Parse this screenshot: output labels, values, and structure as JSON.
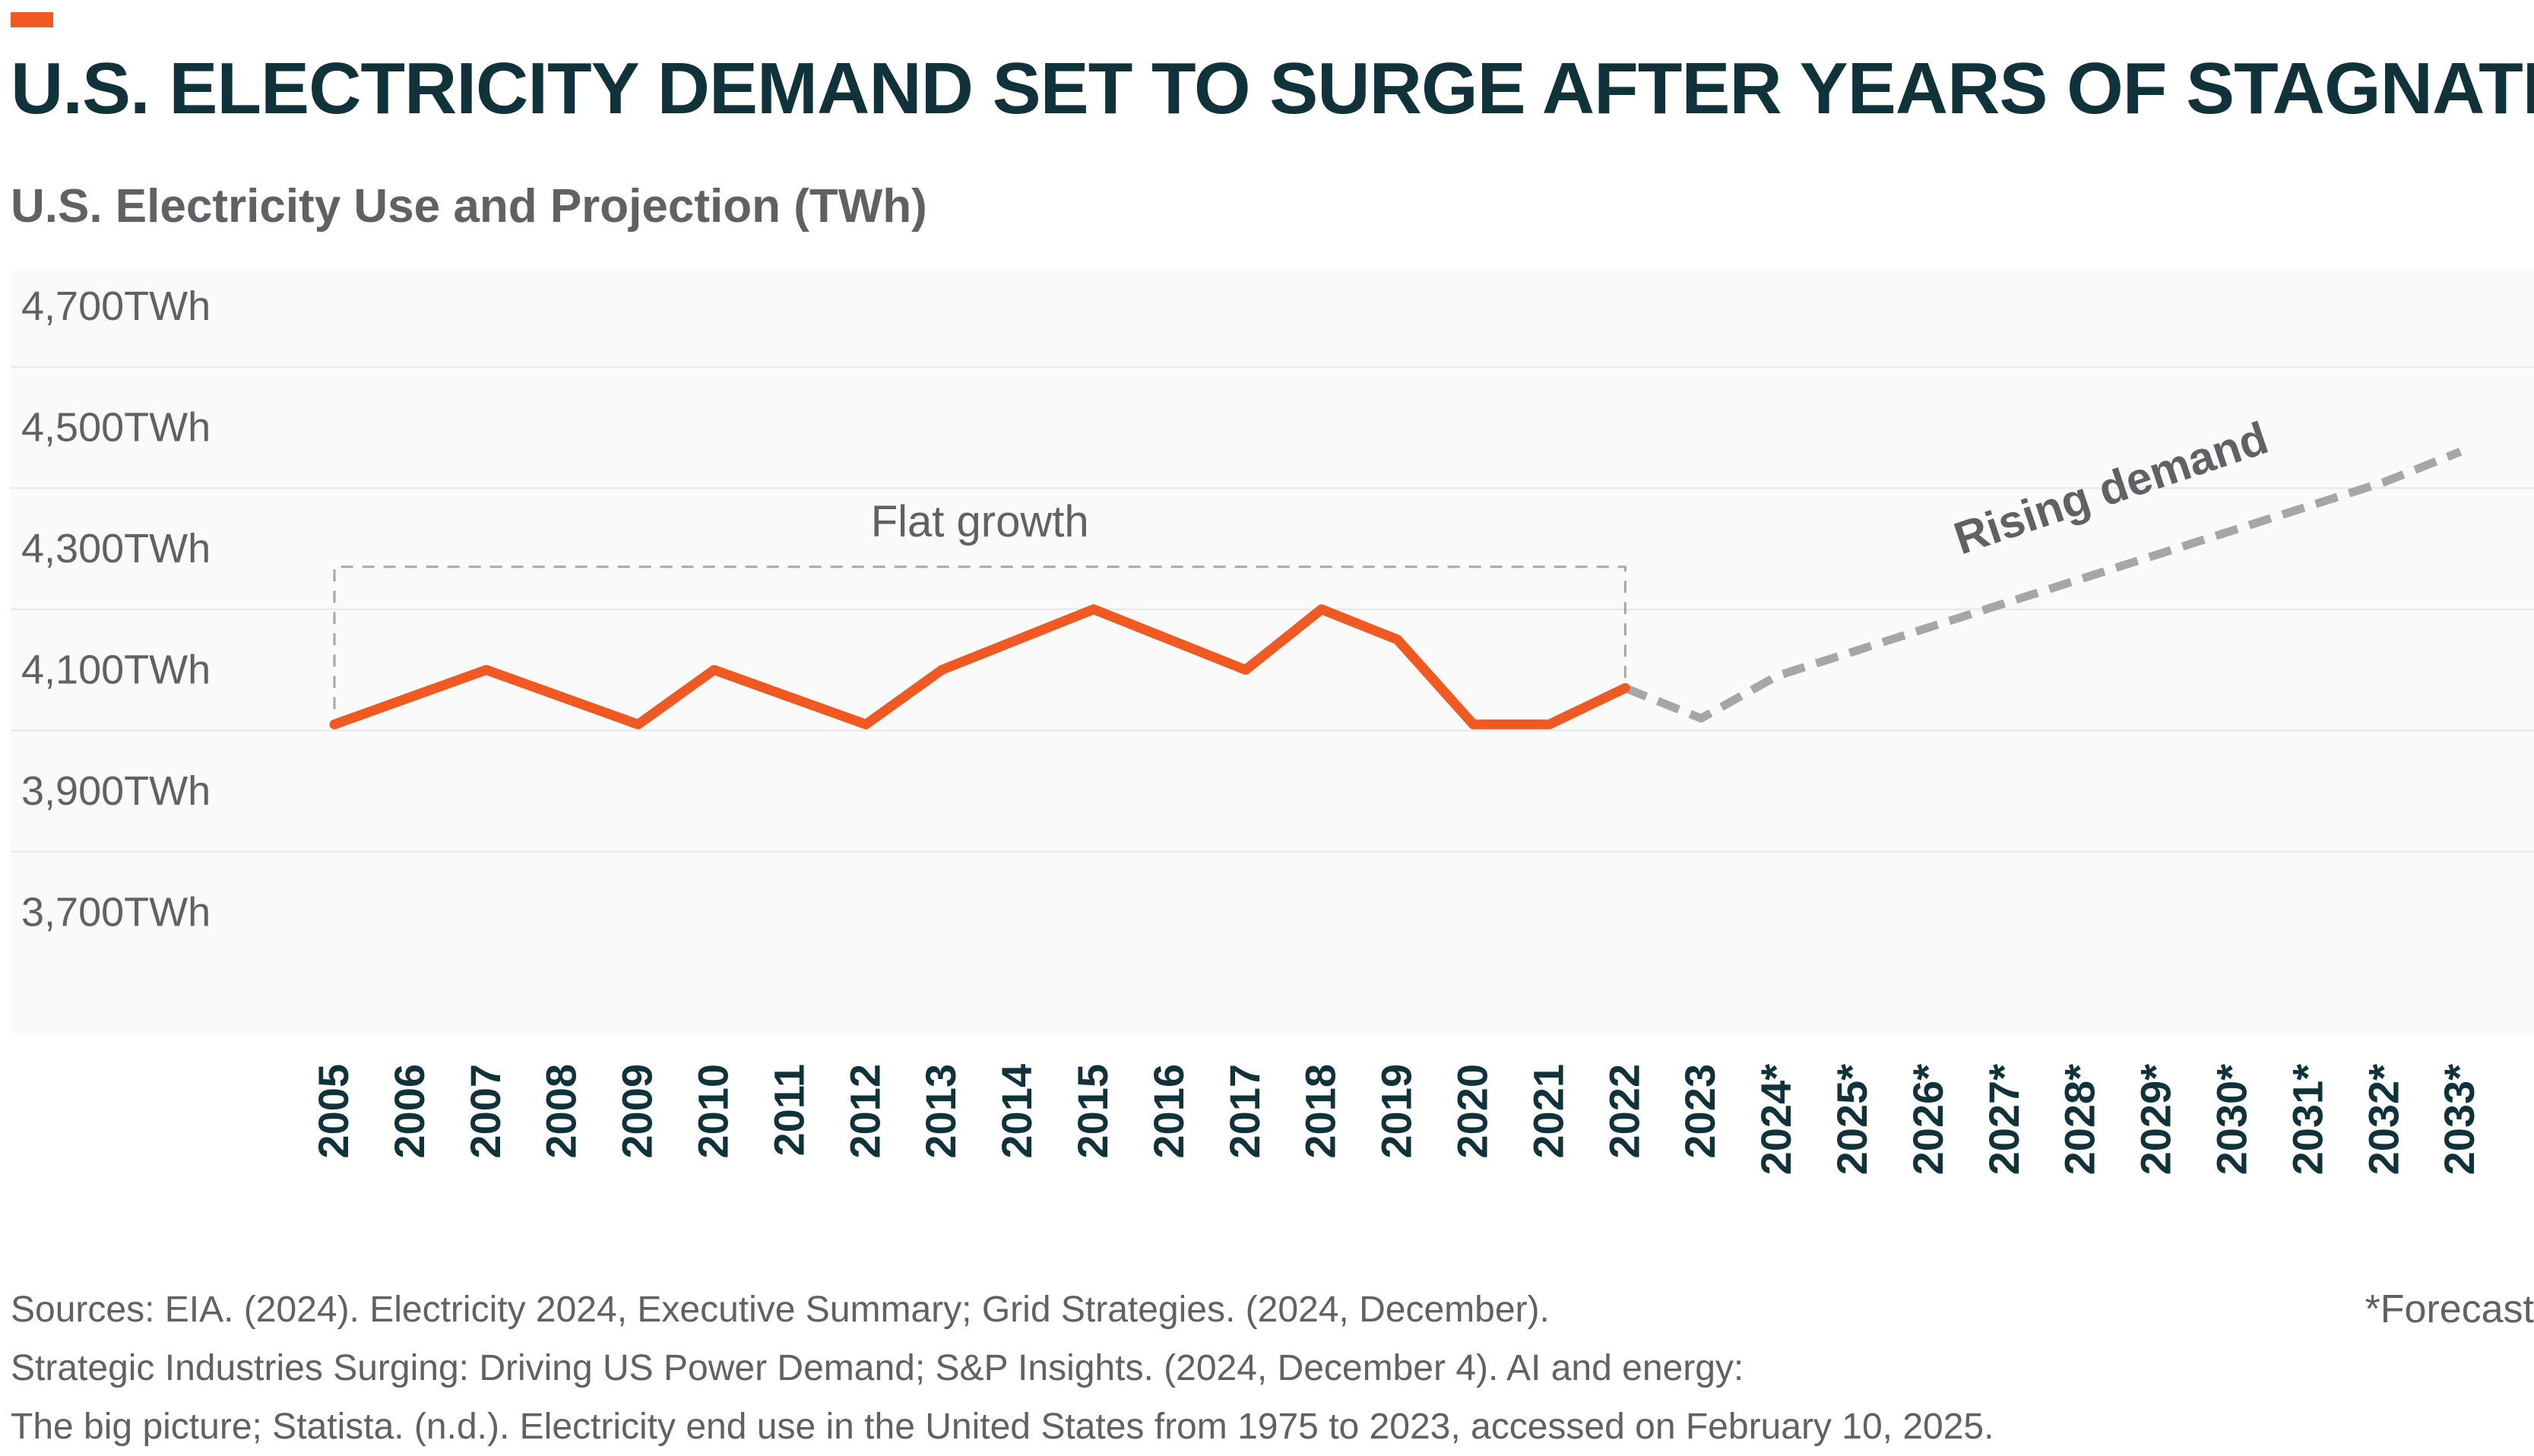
{
  "header": {
    "title": "U.S. ELECTRICITY DEMAND SET TO SURGE AFTER YEARS OF STAGNATION",
    "subtitle": "U.S. Electricity Use and Projection (TWh)"
  },
  "colors": {
    "accent": "#f05a22",
    "title": "#10323a",
    "muted_text": "#5f6165",
    "actual_line": "#f05a22",
    "forecast_line": "#a6a6a6",
    "plot_background": "#fafafa",
    "grid": "#e6e6e6",
    "annotation_box": "#a6a6a6"
  },
  "chart_data": {
    "type": "line",
    "categories": [
      "2005",
      "2006",
      "2007",
      "2008",
      "2009",
      "2010",
      "2011",
      "2012",
      "2013",
      "2014",
      "2015",
      "2016",
      "2017",
      "2018",
      "2019",
      "2020",
      "2021",
      "2022",
      "2023",
      "2024*",
      "2025*",
      "2026*",
      "2027*",
      "2028*",
      "2029*",
      "2030*",
      "2031*",
      "2032*",
      "2033*"
    ],
    "series": [
      {
        "name": "",
        "style": "solid",
        "values": [
          4010,
          4055,
          4100,
          4055,
          4010,
          4100,
          4055,
          4010,
          4100,
          4150,
          4200,
          4150,
          4100,
          4200,
          4150,
          4010,
          4010,
          4070,
          null,
          null,
          null,
          null,
          null,
          null,
          null,
          null,
          null,
          null,
          null
        ]
      },
      {
        "name": "",
        "style": "dashed",
        "values": [
          null,
          null,
          null,
          null,
          null,
          null,
          null,
          null,
          null,
          null,
          null,
          null,
          null,
          null,
          null,
          null,
          null,
          4070,
          4020,
          4090,
          4130,
          4170,
          4210,
          4250,
          4290,
          4330,
          4370,
          4410,
          4460
        ]
      }
    ],
    "y_ticks": [
      3700,
      3900,
      4100,
      4300,
      4500,
      4700
    ],
    "y_tick_labels": [
      "3,700TWh",
      "3,900TWh",
      "4,100TWh",
      "4,300TWh",
      "4,500TWh",
      "4,700TWh"
    ],
    "ylim": [
      3500,
      4700
    ],
    "grid": true,
    "annotations": [
      {
        "text": "Flat growth",
        "type": "dashed-box",
        "x_from": "2005",
        "x_to": "2022",
        "y_top": 4270
      },
      {
        "text": "Rising demand",
        "type": "label",
        "near": "forecast"
      }
    ]
  },
  "footer": {
    "sources": [
      "Sources: EIA. (2024). Electricity 2024, Executive Summary; Grid Strategies. (2024, December).",
      "Strategic Industries Surging: Driving US Power Demand; S&P Insights. (2024, December 4). AI and energy:",
      "The big picture; Statista. (n.d.). Electricity end use in the United States from 1975 to 2023, accessed on February 10, 2025."
    ],
    "forecast_note": "*Forecast"
  }
}
